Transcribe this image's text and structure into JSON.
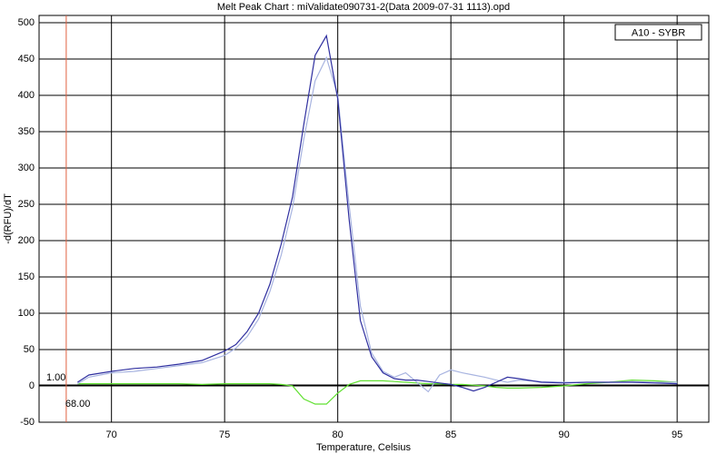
{
  "chart_data": {
    "type": "line",
    "title": "Melt Peak Chart : miValidate090731-2(Data 2009-07-31 1113).opd",
    "x_label": "Temperature, Celsius",
    "y_label": "-d(RFU)/dT",
    "legend_position": "top-right",
    "grid": true,
    "xlim": [
      66.8,
      96.4
    ],
    "ylim": [
      -50,
      510
    ],
    "xticks": [
      70,
      75,
      80,
      85,
      90,
      95
    ],
    "yticks": [
      -50,
      0,
      50,
      100,
      150,
      200,
      250,
      300,
      350,
      400,
      450,
      500
    ],
    "threshold": {
      "value": 1,
      "label": "1.00",
      "color": "#000000"
    },
    "begin_temp": {
      "value": 68,
      "label": "68.00",
      "color": "#e06040"
    },
    "x": [
      68.5,
      69,
      70,
      71,
      72,
      73,
      74,
      75,
      75.5,
      76,
      76.5,
      77,
      77.5,
      78,
      78.5,
      79,
      79.5,
      80,
      80.5,
      81,
      81.5,
      82,
      82.5,
      83,
      83.5,
      84,
      84.5,
      85,
      85.5,
      86,
      86.5,
      87,
      87.5,
      88,
      89,
      90,
      91,
      92,
      93,
      94,
      95
    ],
    "series": [
      {
        "name": "A10 - SYBR",
        "color": "#3030a0",
        "values": [
          5,
          15,
          20,
          24,
          26,
          30,
          35,
          48,
          57,
          75,
          100,
          140,
          195,
          260,
          360,
          455,
          482,
          395,
          230,
          90,
          40,
          18,
          10,
          8,
          8,
          6,
          4,
          2,
          -2,
          -7,
          -2,
          5,
          12,
          10,
          5,
          4,
          5,
          5,
          5,
          4,
          3
        ]
      },
      {
        "color": "#a8b4e0",
        "values": [
          3,
          12,
          18,
          20,
          24,
          28,
          32,
          42,
          52,
          68,
          92,
          130,
          180,
          245,
          340,
          420,
          452,
          400,
          250,
          110,
          45,
          20,
          12,
          18,
          5,
          -8,
          15,
          22,
          18,
          15,
          12,
          8,
          5,
          8,
          6,
          5,
          5,
          5,
          6,
          5,
          5
        ]
      },
      {
        "color": "#60e030",
        "values": [
          3,
          3,
          3,
          3,
          3,
          3,
          2,
          3,
          3,
          3,
          3,
          3,
          2,
          0,
          -18,
          -25,
          -25,
          -10,
          2,
          7,
          7,
          7,
          6,
          5,
          4,
          3,
          3,
          2,
          2,
          1,
          0,
          -2,
          -3,
          -3,
          -2,
          0,
          3,
          5,
          8,
          7,
          5
        ]
      }
    ]
  }
}
